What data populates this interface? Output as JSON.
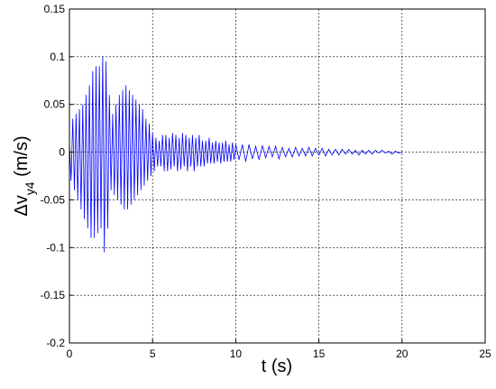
{
  "chart_data": {
    "type": "line",
    "xlabel": "t (s)",
    "ylabel": [
      "Δv",
      "y4",
      " (m/s)"
    ],
    "xlim": [
      0,
      25
    ],
    "ylim": [
      -0.2,
      0.15
    ],
    "xticks": [
      0,
      5,
      10,
      15,
      20,
      25
    ],
    "yticks": [
      -0.2,
      -0.15,
      -0.1,
      -0.05,
      0,
      0.05,
      0.1,
      0.15
    ],
    "grid": true,
    "series": [
      {
        "color": "#0000ff",
        "x": [
          0,
          0.1,
          0.2,
          0.3,
          0.4,
          0.5,
          0.6,
          0.7,
          0.8,
          0.9,
          1,
          1.1,
          1.2,
          1.3,
          1.4,
          1.5,
          1.6,
          1.7,
          1.8,
          1.9,
          2,
          2.1,
          2.2,
          2.3,
          2.4,
          2.5,
          2.6,
          2.7,
          2.8,
          2.9,
          3,
          3.1,
          3.2,
          3.3,
          3.4,
          3.5,
          3.6,
          3.7,
          3.8,
          3.9,
          4,
          4.1,
          4.2,
          4.3,
          4.4,
          4.5,
          4.6,
          4.7,
          4.8,
          4.9,
          5,
          5.1,
          5.2,
          5.3,
          5.4,
          5.5,
          5.6,
          5.7,
          5.8,
          5.9,
          6,
          6.1,
          6.2,
          6.3,
          6.4,
          6.5,
          6.6,
          6.7,
          6.8,
          6.9,
          7,
          7.1,
          7.2,
          7.3,
          7.4,
          7.5,
          7.6,
          7.7,
          7.8,
          7.9,
          8,
          8.1,
          8.2,
          8.3,
          8.4,
          8.5,
          8.6,
          8.7,
          8.8,
          8.9,
          9,
          9.1,
          9.2,
          9.3,
          9.4,
          9.5,
          9.6,
          9.7,
          9.8,
          9.9,
          10,
          10.2,
          10.4,
          10.6,
          10.8,
          11,
          11.2,
          11.4,
          11.6,
          11.8,
          12,
          12.2,
          12.4,
          12.6,
          12.8,
          13,
          13.2,
          13.4,
          13.6,
          13.8,
          14,
          14.2,
          14.4,
          14.6,
          14.8,
          15,
          15.2,
          15.4,
          15.6,
          15.8,
          16,
          16.2,
          16.4,
          16.6,
          16.8,
          17,
          17.2,
          17.4,
          17.6,
          17.8,
          18,
          18.2,
          18.4,
          18.6,
          18.8,
          19,
          19.2,
          19.4,
          19.6,
          19.8,
          20
        ],
        "values": [
          0.01,
          -0.03,
          0.035,
          -0.04,
          0.04,
          -0.05,
          0.045,
          -0.06,
          0.05,
          -0.07,
          0.06,
          -0.08,
          0.07,
          -0.09,
          0.085,
          -0.09,
          0.09,
          -0.085,
          0.09,
          -0.08,
          0.1,
          -0.105,
          0.095,
          -0.08,
          0.06,
          -0.04,
          0.04,
          -0.045,
          0.05,
          -0.05,
          0.06,
          -0.055,
          0.065,
          -0.06,
          0.07,
          -0.06,
          0.065,
          -0.055,
          0.06,
          -0.05,
          0.055,
          -0.045,
          0.05,
          -0.04,
          0.045,
          -0.035,
          0.035,
          -0.03,
          0.03,
          -0.025,
          0.02,
          -0.02,
          0.015,
          -0.015,
          0.012,
          -0.015,
          0.018,
          -0.02,
          0.018,
          -0.02,
          0.015,
          -0.018,
          0.02,
          -0.015,
          0.018,
          -0.02,
          0.015,
          -0.018,
          0.02,
          -0.015,
          0.018,
          -0.02,
          0.015,
          -0.015,
          0.018,
          -0.02,
          0.015,
          -0.015,
          0.018,
          -0.015,
          0.012,
          -0.015,
          0.012,
          -0.012,
          0.015,
          -0.012,
          0.01,
          -0.012,
          0.012,
          -0.01,
          0.01,
          -0.012,
          0.01,
          -0.01,
          0.012,
          -0.01,
          0.008,
          -0.01,
          0.01,
          -0.008,
          0.008,
          -0.008,
          0.008,
          -0.01,
          0.008,
          -0.007,
          0.006,
          -0.008,
          0.007,
          -0.006,
          0.006,
          -0.005,
          0.006,
          -0.007,
          0.005,
          -0.005,
          0.004,
          -0.005,
          0.005,
          -0.004,
          0.004,
          -0.004,
          0.005,
          -0.004,
          0.004,
          -0.003,
          0.004,
          -0.004,
          0.003,
          -0.003,
          0.003,
          -0.003,
          0.003,
          -0.002,
          0.003,
          -0.002,
          0.002,
          -0.003,
          0.002,
          -0.002,
          0.002,
          -0.002,
          0.002,
          -0.001,
          0.002,
          -0.001,
          0.001,
          -0.002,
          0.001,
          -0.001,
          0
        ]
      }
    ]
  }
}
